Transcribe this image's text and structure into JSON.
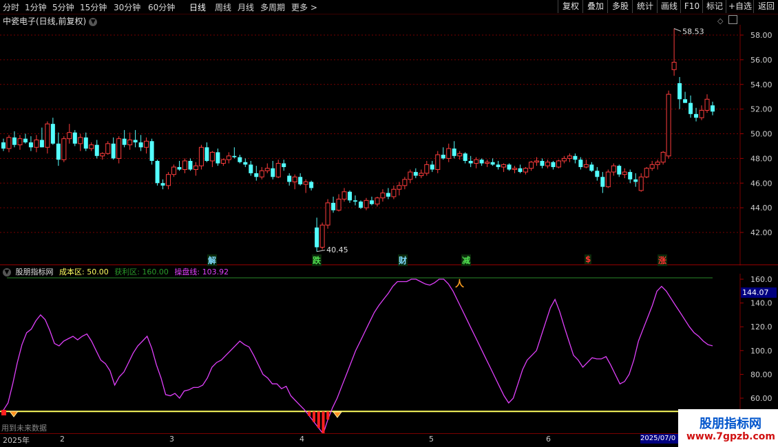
{
  "toolbar": {
    "periods": [
      "分时",
      "1分钟",
      "5分钟",
      "15分钟",
      "30分钟",
      "60分钟",
      "日线",
      "周线",
      "月线",
      "多周期",
      "更多 >"
    ],
    "right_buttons": [
      "复权",
      "叠加",
      "多股",
      "统计",
      "画线",
      "F10",
      "标记",
      "+自选",
      "返回"
    ]
  },
  "header": {
    "stock_title": "中瓷电子(日线,前复权)"
  },
  "main_chart": {
    "y_ticks": [
      "58.00",
      "56.00",
      "54.00",
      "52.00",
      "50.00",
      "48.00",
      "46.00",
      "44.00",
      "42.00"
    ],
    "y_tick_values": [
      58,
      56,
      54,
      52,
      50,
      48,
      46,
      44,
      42
    ],
    "y_range": [
      40.45,
      58.53
    ],
    "high_label": "58.53",
    "low_label": "40.45",
    "signals": [
      {
        "text": "解",
        "color": "#7fd8ff"
      },
      {
        "text": "跌",
        "color": "#50e050"
      },
      {
        "text": "财",
        "color": "#7fd8ff"
      },
      {
        "text": "减",
        "color": "#50e050"
      },
      {
        "text": "$",
        "color": "#ff3030"
      },
      {
        "text": "涨",
        "color": "#ff3030"
      }
    ],
    "candles": [
      [
        49.3,
        49.6,
        48.6,
        48.8
      ],
      [
        48.8,
        49.9,
        48.5,
        49.7
      ],
      [
        49.7,
        50.2,
        48.9,
        49.1
      ],
      [
        49.1,
        49.9,
        48.7,
        49.6
      ],
      [
        49.6,
        50.0,
        49.2,
        49.3
      ],
      [
        49.3,
        49.8,
        48.6,
        48.9
      ],
      [
        48.9,
        49.9,
        48.5,
        49.5
      ],
      [
        49.5,
        50.5,
        48.9,
        48.9
      ],
      [
        48.9,
        51.0,
        48.4,
        50.8
      ],
      [
        50.8,
        51.3,
        49.1,
        49.2
      ],
      [
        49.2,
        50.1,
        47.4,
        47.9
      ],
      [
        47.9,
        49.8,
        47.7,
        49.6
      ],
      [
        49.6,
        50.8,
        49.2,
        50.1
      ],
      [
        50.1,
        50.3,
        49.0,
        49.2
      ],
      [
        49.2,
        50.0,
        48.6,
        49.7
      ],
      [
        49.7,
        50.1,
        48.6,
        48.8
      ],
      [
        48.8,
        49.3,
        48.6,
        49.1
      ],
      [
        49.1,
        49.5,
        48.0,
        48.2
      ],
      [
        48.2,
        48.5,
        47.9,
        48.4
      ],
      [
        48.4,
        49.4,
        48.3,
        49.2
      ],
      [
        49.2,
        49.7,
        47.9,
        48.0
      ],
      [
        48.0,
        49.8,
        47.6,
        49.6
      ],
      [
        49.6,
        50.3,
        48.9,
        49.1
      ],
      [
        49.1,
        50.1,
        48.7,
        49.5
      ],
      [
        49.5,
        50.3,
        48.9,
        49.3
      ],
      [
        49.3,
        49.9,
        48.6,
        48.9
      ],
      [
        48.9,
        49.7,
        48.4,
        49.4
      ],
      [
        49.4,
        49.6,
        47.5,
        47.8
      ],
      [
        47.8,
        47.9,
        45.8,
        46.0
      ],
      [
        46.0,
        46.3,
        45.5,
        45.8
      ],
      [
        45.8,
        46.9,
        45.5,
        46.7
      ],
      [
        46.7,
        47.5,
        46.5,
        47.3
      ],
      [
        47.3,
        47.8,
        47.0,
        47.1
      ],
      [
        47.1,
        48.0,
        46.8,
        47.8
      ],
      [
        47.8,
        48.0,
        47.0,
        47.1
      ],
      [
        47.1,
        47.7,
        46.6,
        47.4
      ],
      [
        47.4,
        49.1,
        47.1,
        48.9
      ],
      [
        48.9,
        49.3,
        47.7,
        47.8
      ],
      [
        47.8,
        48.6,
        47.3,
        48.5
      ],
      [
        48.5,
        48.8,
        47.4,
        47.6
      ],
      [
        47.6,
        48.0,
        47.4,
        47.9
      ],
      [
        47.9,
        48.5,
        47.6,
        48.2
      ],
      [
        48.2,
        48.9,
        48.0,
        48.1
      ],
      [
        48.1,
        48.3,
        47.6,
        47.7
      ],
      [
        47.7,
        48.0,
        47.3,
        47.5
      ],
      [
        47.5,
        47.8,
        46.6,
        46.8
      ],
      [
        46.8,
        47.4,
        46.2,
        46.5
      ],
      [
        46.5,
        47.3,
        46.3,
        47.0
      ],
      [
        47.0,
        47.6,
        46.8,
        47.2
      ],
      [
        47.2,
        47.8,
        46.3,
        46.5
      ],
      [
        46.5,
        47.9,
        46.4,
        47.6
      ],
      [
        47.6,
        47.9,
        47.0,
        47.3
      ],
      [
        46.6,
        46.8,
        45.8,
        46.1
      ],
      [
        46.1,
        46.7,
        45.5,
        46.5
      ],
      [
        46.5,
        46.8,
        45.8,
        45.9
      ],
      [
        45.9,
        46.3,
        45.2,
        46.1
      ],
      [
        46.1,
        46.2,
        45.4,
        45.6
      ],
      [
        42.4,
        43.2,
        40.45,
        40.8
      ],
      [
        40.8,
        42.8,
        40.6,
        42.6
      ],
      [
        42.6,
        44.7,
        42.3,
        44.4
      ],
      [
        44.4,
        44.9,
        43.6,
        43.8
      ],
      [
        43.8,
        45.1,
        43.7,
        44.7
      ],
      [
        44.7,
        45.6,
        44.5,
        45.3
      ],
      [
        45.3,
        45.4,
        44.4,
        44.6
      ],
      [
        44.6,
        45.0,
        44.2,
        44.5
      ],
      [
        44.5,
        44.6,
        43.9,
        44.0
      ],
      [
        44.0,
        44.8,
        43.8,
        44.6
      ],
      [
        44.6,
        44.9,
        44.2,
        44.3
      ],
      [
        44.3,
        44.9,
        44.1,
        44.8
      ],
      [
        44.8,
        45.5,
        44.5,
        45.2
      ],
      [
        45.2,
        45.6,
        44.7,
        44.9
      ],
      [
        44.9,
        45.8,
        44.7,
        45.5
      ],
      [
        45.5,
        46.1,
        45.0,
        45.8
      ],
      [
        45.8,
        46.5,
        45.5,
        46.3
      ],
      [
        46.3,
        47.1,
        46.0,
        46.9
      ],
      [
        46.9,
        47.2,
        46.4,
        46.6
      ],
      [
        46.6,
        47.1,
        46.4,
        46.8
      ],
      [
        46.8,
        47.8,
        46.6,
        47.5
      ],
      [
        47.5,
        47.8,
        46.9,
        47.1
      ],
      [
        47.1,
        48.6,
        46.8,
        48.3
      ],
      [
        48.3,
        48.9,
        47.9,
        48.0
      ],
      [
        48.0,
        49.2,
        47.7,
        48.8
      ],
      [
        48.8,
        49.4,
        48.0,
        48.2
      ],
      [
        48.2,
        48.6,
        47.9,
        48.4
      ],
      [
        48.4,
        48.5,
        47.6,
        47.8
      ],
      [
        47.8,
        48.2,
        47.3,
        47.6
      ],
      [
        47.6,
        48.1,
        47.2,
        47.9
      ],
      [
        47.9,
        48.0,
        47.4,
        47.6
      ],
      [
        47.6,
        47.9,
        47.3,
        47.7
      ],
      [
        47.7,
        48.0,
        47.4,
        47.5
      ],
      [
        47.5,
        47.8,
        47.1,
        47.3
      ],
      [
        47.3,
        47.6,
        46.9,
        47.5
      ],
      [
        47.5,
        47.6,
        47.0,
        47.1
      ],
      [
        47.1,
        47.4,
        46.8,
        47.2
      ],
      [
        47.2,
        47.5,
        46.8,
        46.9
      ],
      [
        46.9,
        47.3,
        46.7,
        47.2
      ],
      [
        47.2,
        47.8,
        47.0,
        47.7
      ],
      [
        47.7,
        48.1,
        47.4,
        47.8
      ],
      [
        47.8,
        48.0,
        47.2,
        47.4
      ],
      [
        47.4,
        47.9,
        47.2,
        47.7
      ],
      [
        47.7,
        47.8,
        47.1,
        47.3
      ],
      [
        47.3,
        47.9,
        47.2,
        47.8
      ],
      [
        47.8,
        48.2,
        47.6,
        48.0
      ],
      [
        48.0,
        48.4,
        47.7,
        48.2
      ],
      [
        48.2,
        48.4,
        47.6,
        47.9
      ],
      [
        47.9,
        48.1,
        47.1,
        47.3
      ],
      [
        47.3,
        47.9,
        47.2,
        47.5
      ],
      [
        47.5,
        47.7,
        46.9,
        47.0
      ],
      [
        47.0,
        47.3,
        46.2,
        46.5
      ],
      [
        46.5,
        46.9,
        45.2,
        45.7
      ],
      [
        45.7,
        47.1,
        45.6,
        46.9
      ],
      [
        46.9,
        47.6,
        46.6,
        47.4
      ],
      [
        47.4,
        47.5,
        46.5,
        46.7
      ],
      [
        46.7,
        47.2,
        46.4,
        46.9
      ],
      [
        46.9,
        47.1,
        46.0,
        46.3
      ],
      [
        46.3,
        46.8,
        45.7,
        46.1
      ],
      [
        45.4,
        46.8,
        45.3,
        46.5
      ],
      [
        46.5,
        47.3,
        46.4,
        47.2
      ],
      [
        47.2,
        47.8,
        47.0,
        47.5
      ],
      [
        47.5,
        47.9,
        47.1,
        47.7
      ],
      [
        47.7,
        48.6,
        47.5,
        48.5
      ],
      [
        48.2,
        53.5,
        48.0,
        53.2
      ],
      [
        55.2,
        58.53,
        54.7,
        55.8
      ],
      [
        54.1,
        54.6,
        52.0,
        52.8
      ],
      [
        52.8,
        53.4,
        52.5,
        52.5
      ],
      [
        52.5,
        53.1,
        51.3,
        51.6
      ],
      [
        51.6,
        52.1,
        51.0,
        51.3
      ],
      [
        51.3,
        52.3,
        51.1,
        51.9
      ],
      [
        51.9,
        53.2,
        51.7,
        52.8
      ],
      [
        52.3,
        52.6,
        51.5,
        51.8
      ]
    ]
  },
  "indicator": {
    "name": "股朋指标网",
    "cost_label": "成本区: 50.00",
    "profit_label": "获利区: 160.00",
    "line_label": "操盘线: 103.92",
    "cost_value": 50,
    "profit_value": 160,
    "current_value_box": "144.07",
    "y_ticks": [
      "160.0",
      "140.0",
      "120.0",
      "100.0",
      "80.00",
      "60.00"
    ],
    "y_tick_values": [
      160,
      140,
      120,
      100,
      80,
      60
    ],
    "y_range": [
      40,
      168
    ],
    "line_values": [
      50,
      56,
      72,
      90,
      105,
      115,
      118,
      125,
      130,
      126,
      117,
      106,
      104,
      108,
      110,
      112,
      109,
      112,
      114,
      108,
      100,
      92,
      89,
      83,
      71,
      78,
      82,
      90,
      98,
      104,
      108,
      112,
      102,
      88,
      77,
      63,
      62,
      64,
      60,
      66,
      67,
      69,
      69,
      71,
      77,
      86,
      90,
      92,
      96,
      100,
      104,
      108,
      105,
      103,
      96,
      88,
      80,
      77,
      72,
      72,
      68,
      70,
      62,
      58,
      54,
      50,
      45,
      40,
      35,
      30,
      42,
      52,
      60,
      70,
      80,
      90,
      100,
      108,
      116,
      124,
      132,
      138,
      143,
      148,
      154,
      158,
      158,
      158,
      160,
      160,
      158,
      156,
      155,
      157,
      160,
      160,
      156,
      150,
      142,
      134,
      126,
      118,
      110,
      102,
      94,
      86,
      78,
      70,
      62,
      56,
      60,
      72,
      84,
      92,
      96,
      100,
      112,
      124,
      136,
      143,
      133,
      120,
      108,
      96,
      92,
      86,
      90,
      94,
      93,
      93,
      95,
      88,
      80,
      72,
      74,
      80,
      92,
      108,
      118,
      128,
      138,
      150,
      154,
      150,
      144,
      138,
      132,
      126,
      120,
      115,
      112,
      108,
      105,
      104
    ]
  },
  "footer": {
    "tip": "用到未来数据",
    "dates": [
      {
        "text": "2025年"
      },
      {
        "text": "2"
      },
      {
        "text": "3"
      },
      {
        "text": "4"
      },
      {
        "text": "5"
      },
      {
        "text": "6"
      }
    ],
    "highlight_date": "2025/07/0"
  },
  "watermark": {
    "name": "股朋指标网",
    "url": "www.7gpzb.com"
  },
  "colors": {
    "up": "#ff3d3d",
    "down": "#54ffff",
    "grid": "#7a0000",
    "line": "#e040fb",
    "cost": "#ffff60",
    "profit": "#2a8a2a"
  }
}
